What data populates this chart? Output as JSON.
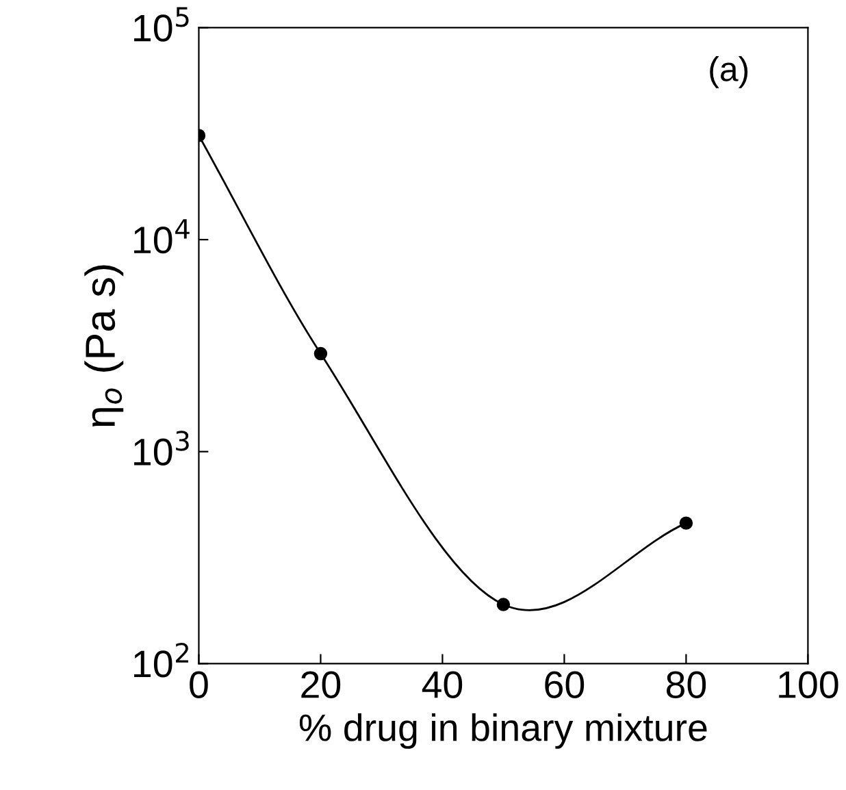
{
  "chart_data": {
    "type": "line",
    "xlabel": "% drug in binary mixture",
    "ylabel": "η$_{o}$ (Pa s)",
    "annotations": [
      "(a)"
    ],
    "x": [
      0,
      20,
      50,
      80
    ],
    "series": [
      {
        "color": "#000000",
        "values": [
          31000,
          2900,
          190,
          460
        ]
      }
    ],
    "marker": "circle",
    "line_style": "solid",
    "log": "y",
    "grid": false,
    "legend": false,
    "xlim": [
      0,
      100
    ],
    "xticks": [
      0,
      20,
      40,
      60,
      80,
      100
    ],
    "ylim": [
      100,
      100000
    ],
    "yticks": [
      {
        "value": 100,
        "label": "10$^{2}$"
      },
      {
        "value": 1000,
        "label": "10$^{3}$"
      },
      {
        "value": 10000,
        "label": "10$^{4}$"
      },
      {
        "value": 100000,
        "label": "10$^{5}$"
      }
    ]
  }
}
